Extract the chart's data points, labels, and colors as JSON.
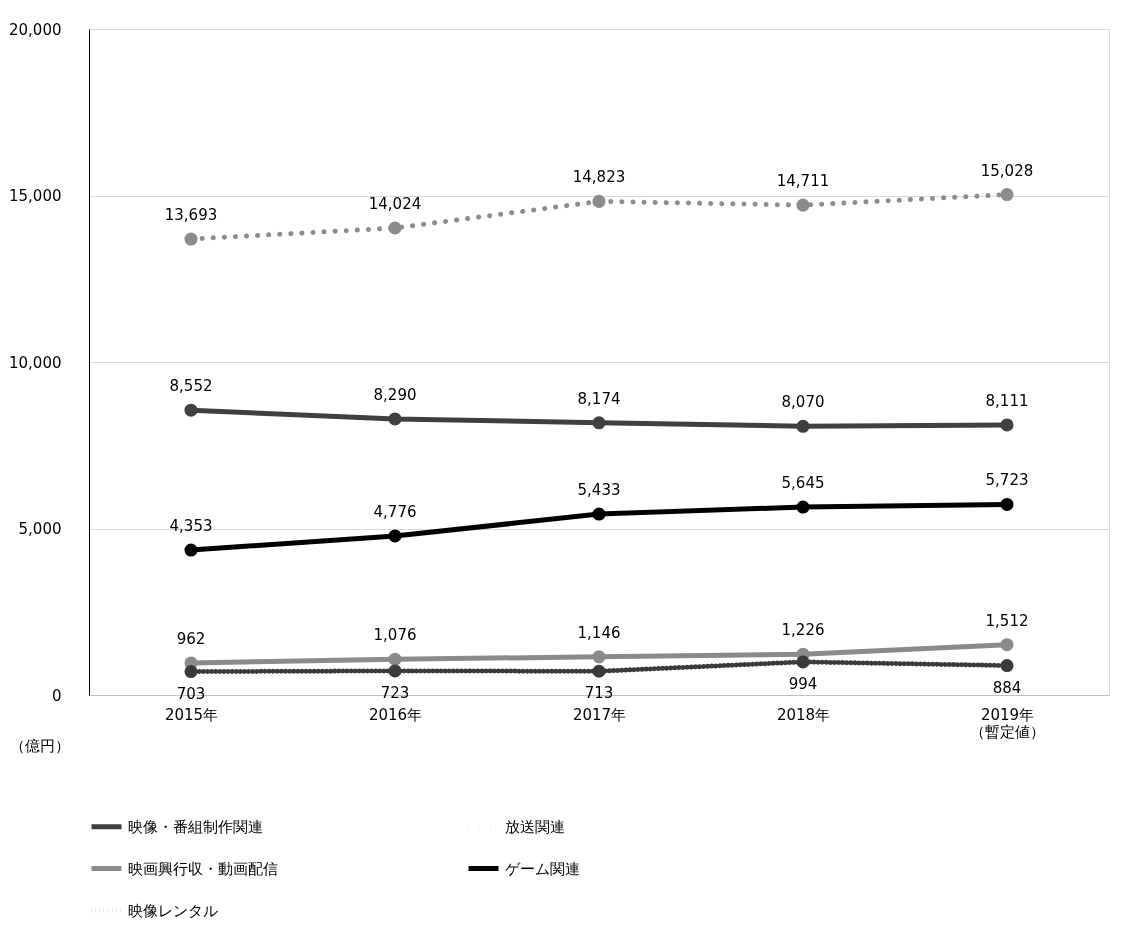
{
  "chart_data": {
    "type": "line",
    "ylabel": "（億円）",
    "categories": [
      "2015年",
      "2016年",
      "2017年",
      "2018年",
      "2019年（暫定値）"
    ],
    "series": [
      {
        "name": "映像・番組制作関連",
        "color": "#404040",
        "line_style": "solid",
        "values": [
          8552,
          8290,
          8174,
          8070,
          8111
        ],
        "value_labels": [
          "8,552",
          "8,290",
          "8,174",
          "8,070",
          "8,111"
        ]
      },
      {
        "name": "放送関連",
        "color": "#8c8c8c",
        "line_style": "dotted",
        "values": [
          13693,
          14024,
          14823,
          14711,
          15028
        ],
        "value_labels": [
          "13,693",
          "14,024",
          "14,823",
          "14,711",
          "15,028"
        ]
      },
      {
        "name": "映画興行収・動画配信",
        "color": "#8a8a8a",
        "line_style": "solid",
        "values": [
          962,
          1076,
          1146,
          1226,
          1512
        ],
        "value_labels": [
          "962",
          "1,076",
          "1,146",
          "1,226",
          "1,512"
        ]
      },
      {
        "name": "ゲーム関連",
        "color": "#000000",
        "line_style": "solid",
        "values": [
          4353,
          4776,
          5433,
          5645,
          5723
        ],
        "value_labels": [
          "4,353",
          "4,776",
          "5,433",
          "5,645",
          "5,723"
        ]
      },
      {
        "name": "映像レンタル",
        "color": "#3a3a3a",
        "line_style": "dotted",
        "values": [
          703,
          723,
          713,
          994,
          884
        ],
        "value_labels": [
          "703",
          "723",
          "713",
          "994",
          "884"
        ]
      }
    ],
    "ylim": [
      0,
      20000
    ],
    "yticks": [
      {
        "value": 0,
        "label": "0"
      },
      {
        "value": 5000,
        "label": "5,000"
      },
      {
        "value": 10000,
        "label": "10,000"
      },
      {
        "value": 15000,
        "label": "15,000"
      },
      {
        "value": 20000,
        "label": "20,000"
      }
    ],
    "grid": "y",
    "legend": "bottom",
    "marker": "circle"
  }
}
